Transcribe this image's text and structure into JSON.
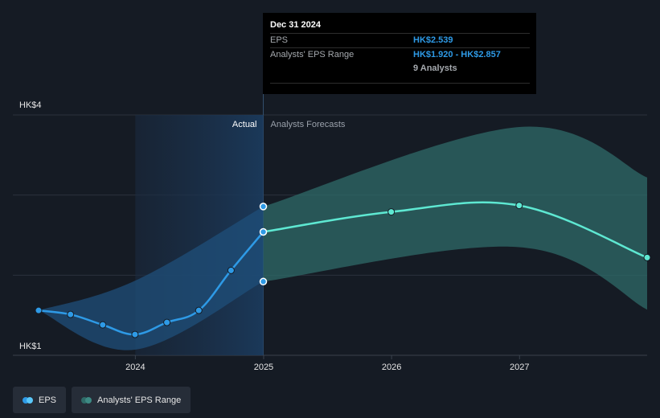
{
  "tooltip": {
    "date": "Dec 31 2024",
    "rows": [
      {
        "label": "EPS",
        "value": "HK$2.539"
      },
      {
        "label": "Analysts' EPS Range",
        "value": "HK$1.920 - HK$2.857"
      }
    ],
    "analysts": "9 Analysts"
  },
  "zones": {
    "actual": "Actual",
    "forecast": "Analysts Forecasts"
  },
  "legend": [
    {
      "label": "EPS",
      "colors": [
        "#2e9ae6",
        "#5ac8fa"
      ]
    },
    {
      "label": "Analysts' EPS Range",
      "colors": [
        "#2f6b68",
        "#3d8a84"
      ]
    }
  ],
  "colors": {
    "eps": "#2e9ae6",
    "forecast": "#5ee8d2",
    "actual_band": "#1f4f7a",
    "forecast_band": "#2f6b68",
    "grid": "#2b323d"
  },
  "chart_data": {
    "type": "line",
    "y_tick_labels": [
      "HK$1",
      "HK$4"
    ],
    "ylim": [
      1,
      4
    ],
    "x_ticks": [
      "2024",
      "2025",
      "2026",
      "2027"
    ],
    "xlim": [
      "2023-03-31",
      "2027-12-31"
    ],
    "divider": "2024-12-31",
    "series": [
      {
        "name": "EPS",
        "points": [
          {
            "x": "2023-03-31",
            "y": 1.56
          },
          {
            "x": "2023-06-30",
            "y": 1.51
          },
          {
            "x": "2023-09-30",
            "y": 1.38
          },
          {
            "x": "2023-12-31",
            "y": 1.26
          },
          {
            "x": "2024-03-31",
            "y": 1.41
          },
          {
            "x": "2024-06-30",
            "y": 1.56
          },
          {
            "x": "2024-09-30",
            "y": 2.06
          },
          {
            "x": "2024-12-31",
            "y": 2.54
          }
        ]
      },
      {
        "name": "Analysts Forecasts",
        "points": [
          {
            "x": "2024-12-31",
            "y": 2.54
          },
          {
            "x": "2025-12-31",
            "y": 2.79
          },
          {
            "x": "2026-12-31",
            "y": 2.87
          },
          {
            "x": "2027-12-31",
            "y": 2.22
          }
        ]
      }
    ],
    "range": [
      {
        "x": "2023-03-31",
        "low": 1.56,
        "high": 1.56
      },
      {
        "x": "2023-12-31",
        "low": 1.07,
        "high": 1.93
      },
      {
        "x": "2024-12-31",
        "low": 1.92,
        "high": 2.857
      },
      {
        "x": "2026-12-31",
        "low": 2.35,
        "high": 3.85
      },
      {
        "x": "2027-12-31",
        "low": 1.57,
        "high": 3.22
      }
    ],
    "grid": true
  }
}
